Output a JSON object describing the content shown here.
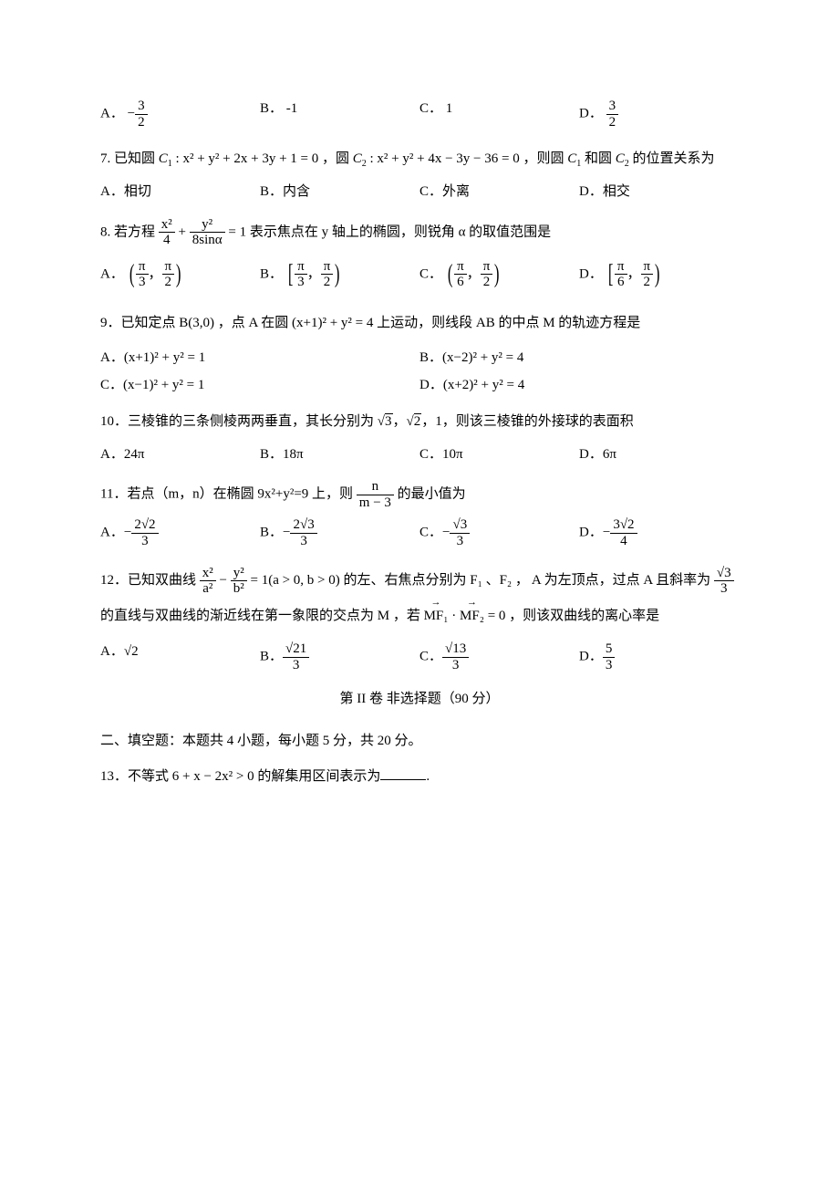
{
  "text_color": "#000000",
  "background_color": "#ffffff",
  "font_family": "SimSun",
  "base_font_size": 15,
  "q6": {
    "opts": {
      "A": {
        "label": "A．",
        "num": "3",
        "den": "2",
        "neg": true
      },
      "B": {
        "label": "B．",
        "val": "-1"
      },
      "C": {
        "label": "C．",
        "val": "1"
      },
      "D": {
        "label": "D．",
        "num": "3",
        "den": "2",
        "neg": false
      }
    }
  },
  "q7": {
    "stem_a": "7. 已知圆 ",
    "c1_label": "C",
    "c1_sub": "1",
    "c1_eq": " : x² + y² + 2x + 3y + 1 = 0 ，圆 ",
    "c2_label": "C",
    "c2_sub": "2",
    "c2_eq": " : x² + y² + 4x − 3y − 36 = 0 ，则圆 ",
    "tail1": " 和圆 ",
    "tail2": " 的位置关系为",
    "opts": {
      "A": {
        "label": "A．",
        "val": "相切"
      },
      "B": {
        "label": "B．",
        "val": "内含"
      },
      "C": {
        "label": "C．",
        "val": "外离"
      },
      "D": {
        "label": "D．",
        "val": "相交"
      }
    }
  },
  "q8": {
    "stem_a": "8. 若方程 ",
    "lhs_num1": "x²",
    "lhs_den1": "4",
    "plus": " + ",
    "lhs_num2": "y²",
    "lhs_den2": "8sinα",
    "stem_b": " = 1 表示焦点在 y 轴上的椭圆，则锐角 α 的取值范围是",
    "opts": {
      "A": {
        "label": "A．",
        "l": "(",
        "a_num": "π",
        "a_den": "3",
        "comma": "，",
        "b_num": "π",
        "b_den": "2",
        "r": ")"
      },
      "B": {
        "label": "B．",
        "l": "[",
        "a_num": "π",
        "a_den": "3",
        "comma": "，",
        "b_num": "π",
        "b_den": "2",
        "r": ")"
      },
      "C": {
        "label": "C．",
        "l": "(",
        "a_num": "π",
        "a_den": "6",
        "comma": "，",
        "b_num": "π",
        "b_den": "2",
        "r": ")"
      },
      "D": {
        "label": "D．",
        "l": "[",
        "a_num": "π",
        "a_den": "6",
        "comma": "，",
        "b_num": "π",
        "b_den": "2",
        "r": ")"
      }
    }
  },
  "q9": {
    "stem": "9．已知定点 B(3,0) ，点 A 在圆 (x+1)² + y² = 4 上运动，则线段 AB 的中点 M 的轨迹方程是",
    "opts": {
      "A": {
        "label": "A．",
        "val": "(x+1)² + y² = 1"
      },
      "B": {
        "label": "B．",
        "val": "(x−2)² + y² = 4"
      },
      "C": {
        "label": "C．",
        "val": "(x−1)² + y² = 1"
      },
      "D": {
        "label": "D．",
        "val": "(x+2)² + y² = 4"
      }
    }
  },
  "q10": {
    "stem_a": "10．三棱锥的三条侧棱两两垂直，其长分别为 ",
    "v1": "3",
    "v2": "2",
    "v3": "1",
    "stem_b": "，则该三棱锥的外接球的表面积",
    "opts": {
      "A": {
        "label": "A．",
        "val": "24π"
      },
      "B": {
        "label": "B．",
        "val": "18π"
      },
      "C": {
        "label": "C．",
        "val": "10π"
      },
      "D": {
        "label": "D．",
        "val": "6π"
      }
    }
  },
  "q11": {
    "stem_a": "11．若点（m，n）在椭圆 9x²+y²=9 上，则 ",
    "frac_num": "n",
    "frac_den": "m − 3",
    "stem_b": " 的最小值为",
    "opts": {
      "A": {
        "label": "A．",
        "num": "2√2",
        "den": "3"
      },
      "B": {
        "label": "B．",
        "num": "2√3",
        "den": "3"
      },
      "C": {
        "label": "C．",
        "num": "√3",
        "den": "3"
      },
      "D": {
        "label": "D．",
        "num": "3√2",
        "den": "4"
      }
    }
  },
  "q12": {
    "stem_a": "12．已知双曲线 ",
    "lhs_num1": "x²",
    "lhs_den1": "a²",
    "minus": " − ",
    "lhs_num2": "y²",
    "lhs_den2": "b²",
    "stem_b": " = 1(a > 0, b > 0) 的左、右焦点分别为 F₁ 、F₂ ， A 为左顶点，过点 A 且斜率为 ",
    "k_num": "√3",
    "k_den": "3",
    "stem_c": " 的直线与双曲线的渐近线在第一象限的交点为 M ，若 ",
    "vec1": "MF₁",
    "dot": " · ",
    "vec2": "MF₂",
    "stem_d": " = 0 ，则该双曲线的离心率是",
    "opts": {
      "A": {
        "label": "A．",
        "val": "√2"
      },
      "B": {
        "label": "B．",
        "num": "√21",
        "den": "3"
      },
      "C": {
        "label": "C．",
        "num": "√13",
        "den": "3"
      },
      "D": {
        "label": "D．",
        "num": "5",
        "den": "3"
      }
    }
  },
  "section2_title": "第 II 卷 非选择题（90 分）",
  "section2_instr": "二、填空题：本题共 4 小题，每小题 5 分，共 20 分。",
  "q13": {
    "stem": "13．不等式 6 + x − 2x² > 0 的解集用区间表示为",
    "tail": "."
  }
}
